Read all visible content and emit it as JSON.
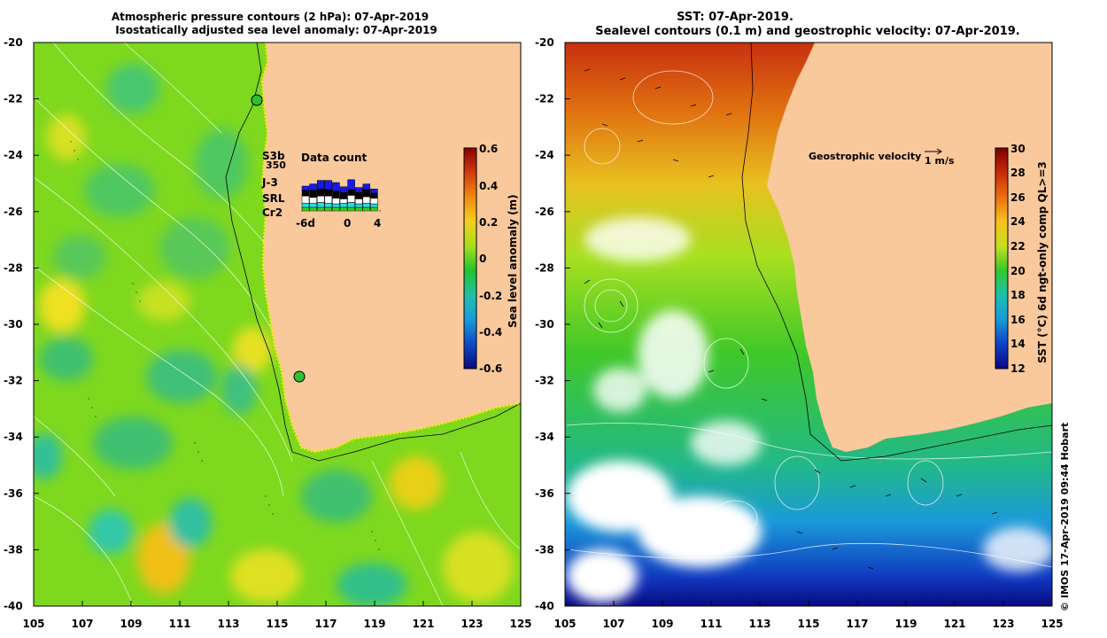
{
  "left_panel": {
    "title_line1": "Atmospheric pressure contours (2 hPa): 07-Apr-2019",
    "title_line2": "Isostatically adjusted sea level anomaly: 07-Apr-2019",
    "colorbar": {
      "label": "Sea level anomaly (m)",
      "ticks": [
        "0.6",
        "0.4",
        "0.2",
        "0",
        "-0.2",
        "-0.4",
        "-0.6"
      ],
      "colors": [
        "#8b0000",
        "#d23a10",
        "#f08a10",
        "#f5d020",
        "#a6e01e",
        "#22c22c",
        "#22c0a8",
        "#1a9ad8",
        "#1048c8",
        "#0a0a78"
      ]
    },
    "inset": {
      "title": "Data count",
      "count": "350",
      "x_labels": [
        "-6d",
        "0",
        "4"
      ],
      "legend": [
        {
          "name": "S3b",
          "color": "#1818e8"
        },
        {
          "name": "J-3",
          "color": "#000000"
        },
        {
          "name": "SRL",
          "color": "#20e0e0"
        },
        {
          "name": "Cr2",
          "color": "#20e020"
        }
      ]
    }
  },
  "right_panel": {
    "title_line1": "SST: 07-Apr-2019.",
    "title_line2": "Sealevel contours (0.1 m) and geostrophic velocity: 07-Apr-2019.",
    "velocity_label": "Geostrophic velocity",
    "velocity_scale": "1 m/s",
    "colorbar": {
      "label": "SST (°C) 6d ngt-only comp QL>=3",
      "ticks": [
        "30",
        "28",
        "26",
        "24",
        "22",
        "20",
        "18",
        "16",
        "14",
        "12"
      ],
      "colors": [
        "#7a0000",
        "#c82a0a",
        "#ea7010",
        "#f6c020",
        "#c8e020",
        "#34c82a",
        "#1ec0b0",
        "#189ad8",
        "#1040c8",
        "#080880"
      ]
    }
  },
  "axes": {
    "lat_ticks": [
      "-20",
      "-22",
      "-24",
      "-26",
      "-28",
      "-30",
      "-32",
      "-34",
      "-36",
      "-38",
      "-40"
    ],
    "lon_ticks": [
      "105",
      "107",
      "109",
      "111",
      "113",
      "115",
      "117",
      "119",
      "121",
      "123",
      "125"
    ]
  },
  "credit": "© IMOS 17-Apr-2019 09:44 Hobart",
  "land_color": "#f9c89b"
}
